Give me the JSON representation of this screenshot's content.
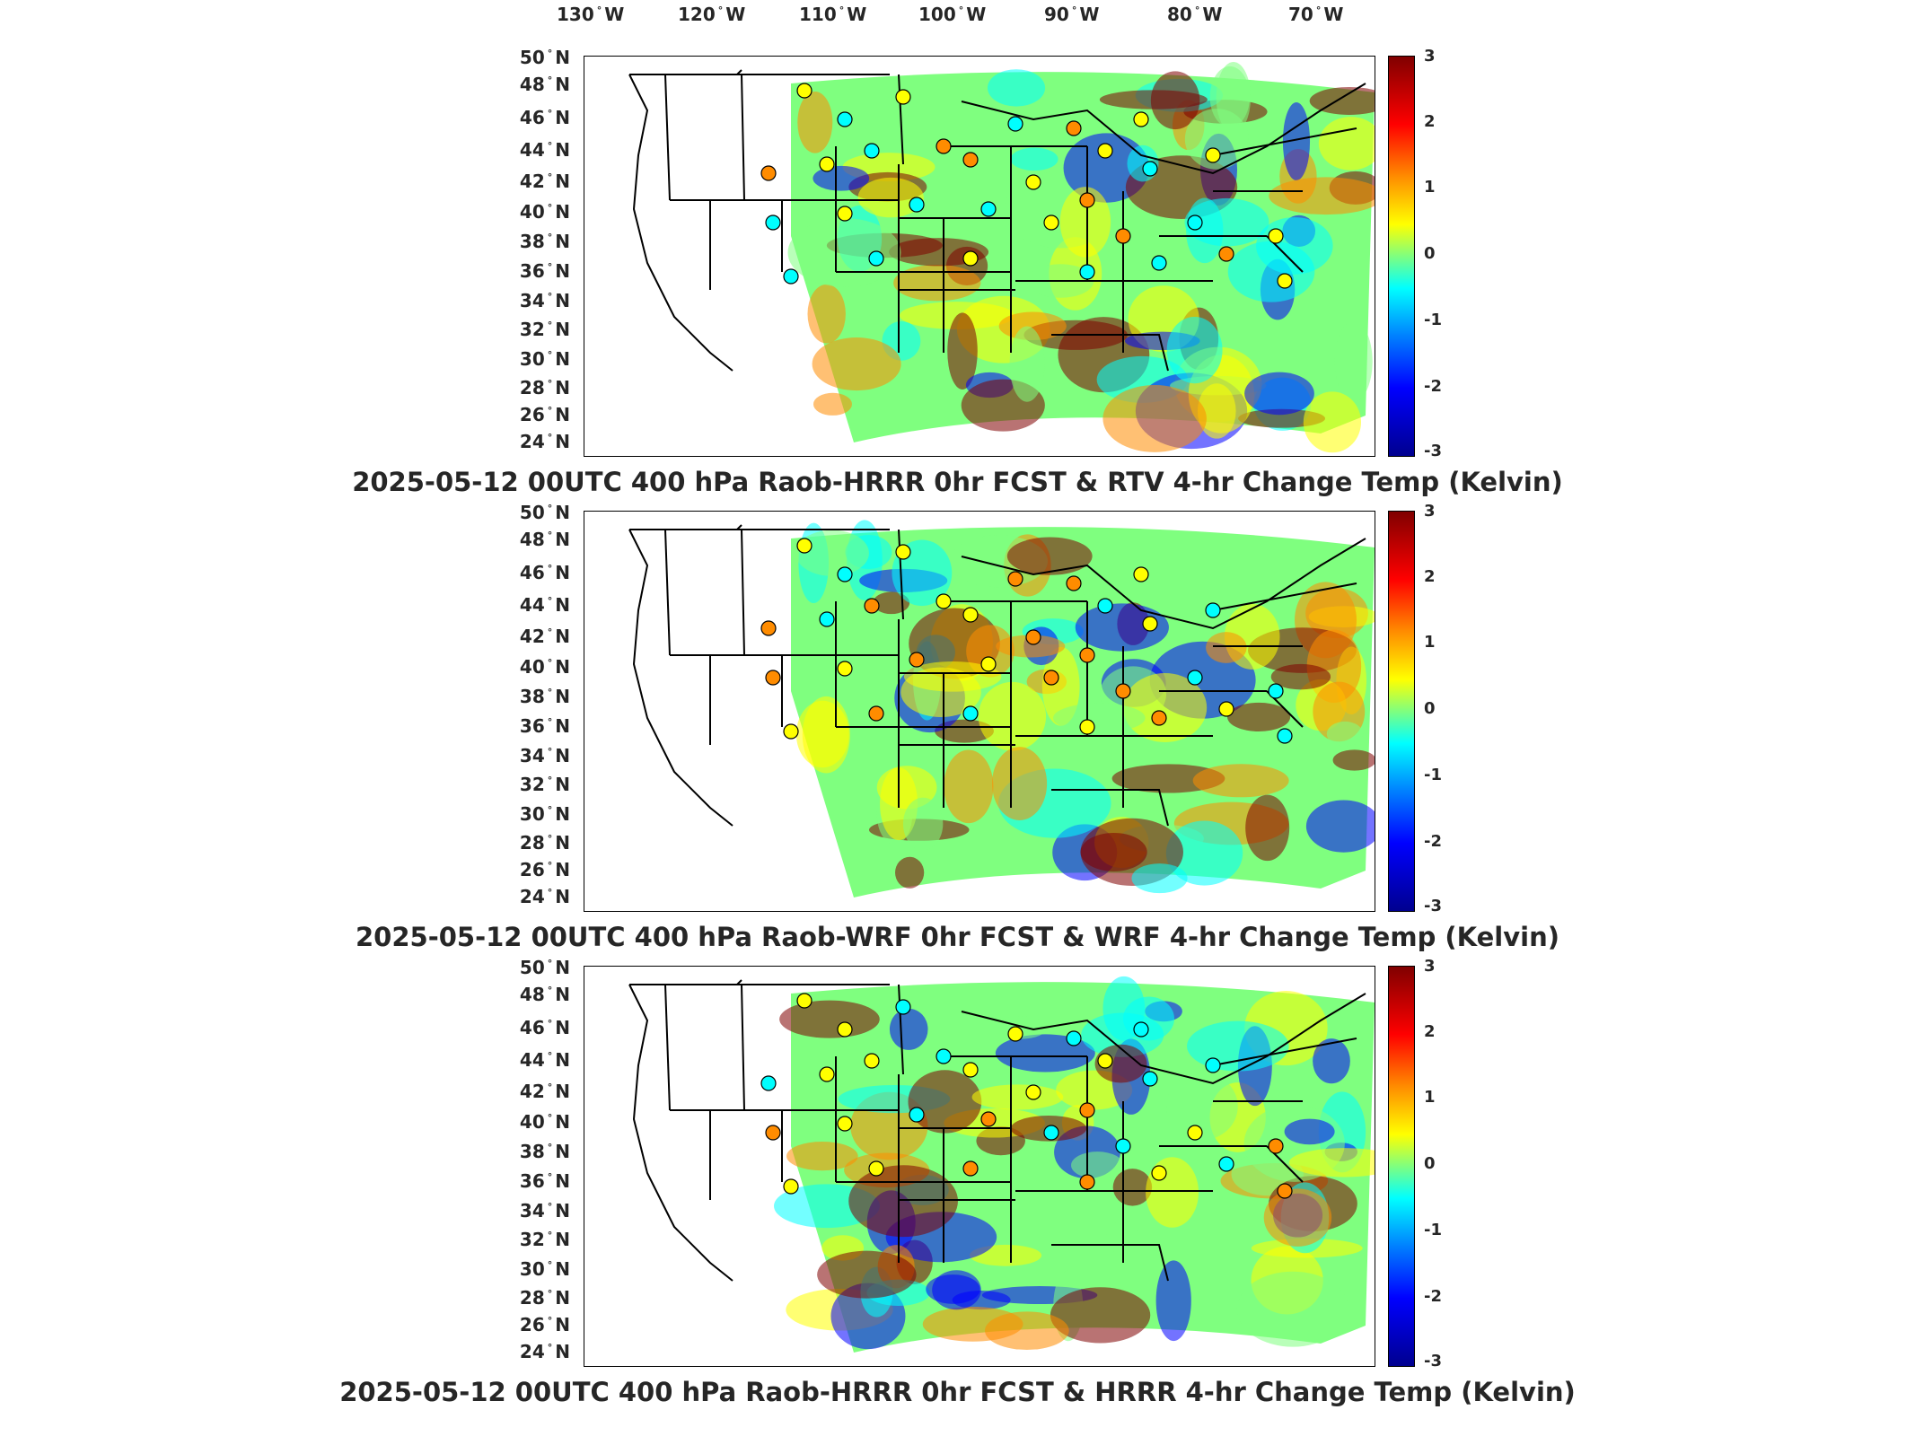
{
  "lon_labels": [
    "130",
    "120",
    "110",
    "100",
    "90",
    "80",
    "70"
  ],
  "lon_suffix": "W",
  "lat_labels": [
    "50",
    "48",
    "46",
    "44",
    "42",
    "40",
    "38",
    "36",
    "34",
    "32",
    "30",
    "28",
    "26",
    "24"
  ],
  "lat_suffix": "N",
  "colorbar_ticks": [
    "3",
    "2",
    "1",
    "0",
    "-1",
    "-2",
    "-3"
  ],
  "colors": {
    "max": "#800000",
    "warm": "#ff8c00",
    "mid": "#ffff00",
    "neutral": "#7fff7f",
    "cool": "#00ffff",
    "cold": "#0000ff",
    "min": "#00008f"
  },
  "panels": [
    {
      "title": "2025-05-12 00UTC 400 hPa Raob-HRRR 0hr FCST & RTV 4-hr Change Temp (Kelvin)"
    },
    {
      "title": "2025-05-12 00UTC 400 hPa Raob-WRF 0hr FCST & WRF 4-hr Change Temp (Kelvin)"
    },
    {
      "title": "2025-05-12 00UTC 400 hPa Raob-HRRR 0hr FCST & HRRR 4-hr Change Temp (Kelvin)"
    }
  ]
}
